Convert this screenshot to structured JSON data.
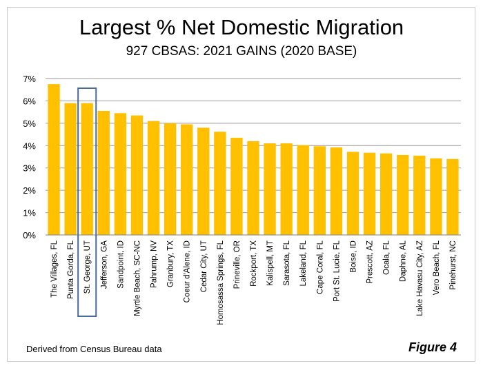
{
  "figure": {
    "title": "Largest % Net Domestic Migration",
    "subtitle": "927 CBSAS: 2021 GAINS (2020 BASE)",
    "source": "Derived from Census Bureau data",
    "label": "Figure 4"
  },
  "colors": {
    "bar": "#FFC000",
    "highlight_box": "#4A6A9A",
    "grid": "#9a9a9a"
  },
  "chart_data": {
    "type": "bar",
    "categories": [
      "The Villages, FL",
      "Punta Gorda, FL",
      "St. George, UT",
      "Jefferson, GA",
      "Sandpoint, ID",
      "Myrtle Beach, SC-NC",
      "Pahrump, NV",
      "Granbury, TX",
      "Coeur d'Alene, ID",
      "Cedar City, UT",
      "Homosassa Springs, FL",
      "Prineville, OR",
      "Rockport, TX",
      "Kalispell, MT",
      "Sarasota, FL",
      "Lakeland, FL",
      "Cape Coral, FL",
      "Port St. Lucie, FL",
      "Boise, ID",
      "Prescott, AZ",
      "Ocala, FL",
      "Daphne, AL",
      "Lake Havasu City, AZ",
      "Vero Beach, FL",
      "Pinehurst, NC"
    ],
    "values": [
      6.75,
      5.9,
      5.9,
      5.55,
      5.45,
      5.35,
      5.1,
      5.0,
      4.95,
      4.8,
      4.62,
      4.35,
      4.2,
      4.1,
      4.1,
      4.02,
      3.97,
      3.92,
      3.72,
      3.68,
      3.65,
      3.58,
      3.55,
      3.43,
      3.4
    ],
    "highlighted_category": "St. George, UT",
    "title": "Largest % Net Domestic Migration",
    "subtitle": "927 CBSAS: 2021 GAINS (2020 BASE)",
    "xlabel": "",
    "ylabel": "",
    "ylim": [
      0,
      7
    ],
    "yticks": [
      "0%",
      "1%",
      "2%",
      "3%",
      "4%",
      "5%",
      "6%",
      "7%"
    ],
    "grid": true,
    "legend": "none"
  }
}
